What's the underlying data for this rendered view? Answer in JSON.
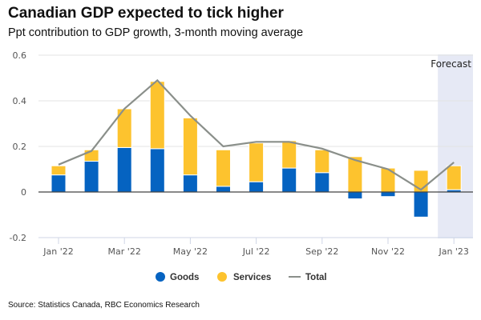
{
  "header": {
    "title": "Canadian GDP expected to tick higher",
    "subtitle": "Ppt contribution to GDP growth, 3-month moving average"
  },
  "footer": {
    "source": "Source: Statistics Canada, RBC Economics Research"
  },
  "colors": {
    "goods": "#0563c1",
    "services": "#fdc32e",
    "total": "#8a8f8a",
    "forecast_band": "#e6e9f5",
    "zero_line": "#444444",
    "grid": "#e3e3e3"
  },
  "chart_data": {
    "type": "bar",
    "stacked": true,
    "title": "Canadian GDP expected to tick higher",
    "subtitle": "Ppt contribution to GDP growth, 3-month moving average",
    "xlabel": "",
    "ylabel": "",
    "ylim": [
      -0.2,
      0.6
    ],
    "yticks": [
      -0.2,
      0,
      0.2,
      0.4,
      0.6
    ],
    "ytick_labels": [
      "-0.2",
      "0",
      "0.2",
      "0.4",
      "0.6"
    ],
    "grid": true,
    "categories": [
      "Jan '22",
      "Feb '22",
      "Mar '22",
      "Apr '22",
      "May '22",
      "Jun '22",
      "Jul '22",
      "Aug '22",
      "Sep '22",
      "Oct '22",
      "Nov '22",
      "Dec '22",
      "Jan '23"
    ],
    "xtick_labels": [
      {
        "index": 0,
        "label": "Jan '22"
      },
      {
        "index": 2,
        "label": "Mar '22"
      },
      {
        "index": 4,
        "label": "May '22"
      },
      {
        "index": 6,
        "label": "Jul '22"
      },
      {
        "index": 8,
        "label": "Sep '22"
      },
      {
        "index": 10,
        "label": "Nov '22"
      },
      {
        "index": 12,
        "label": "Jan '23"
      }
    ],
    "series": [
      {
        "name": "Goods",
        "type": "bar",
        "values": [
          0.075,
          0.135,
          0.195,
          0.19,
          0.075,
          0.025,
          0.045,
          0.105,
          0.085,
          -0.03,
          -0.02,
          -0.11,
          0.01
        ]
      },
      {
        "name": "Services",
        "type": "bar",
        "values": [
          0.04,
          0.05,
          0.17,
          0.295,
          0.25,
          0.16,
          0.17,
          0.12,
          0.1,
          0.155,
          0.105,
          0.095,
          0.105
        ]
      },
      {
        "name": "Total",
        "type": "line",
        "values": [
          0.12,
          0.18,
          0.365,
          0.49,
          0.335,
          0.2,
          0.22,
          0.22,
          0.19,
          0.14,
          0.1,
          0.01,
          0.13
        ]
      }
    ],
    "annotations": [
      {
        "text": "Forecast",
        "type": "shaded-region",
        "from_index": 12,
        "to_index": 12
      }
    ],
    "legend": {
      "position": "bottom-center",
      "entries": [
        "Goods",
        "Services",
        "Total"
      ]
    }
  }
}
